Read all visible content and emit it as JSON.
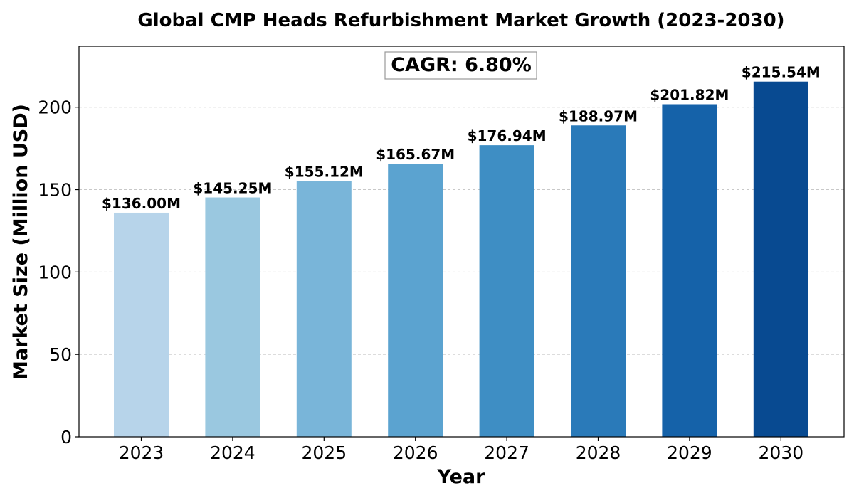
{
  "chart_data": {
    "type": "bar",
    "title": "Global CMP Heads Refurbishment Market Growth (2023-2030)",
    "xlabel": "Year",
    "ylabel": "Market Size (Million USD)",
    "categories": [
      "2023",
      "2024",
      "2025",
      "2026",
      "2027",
      "2028",
      "2029",
      "2030"
    ],
    "values": [
      136.0,
      145.25,
      155.12,
      165.67,
      176.94,
      188.97,
      201.82,
      215.54
    ],
    "value_labels": [
      "$136.00M",
      "$145.25M",
      "$155.12M",
      "$165.67M",
      "$176.94M",
      "$188.97M",
      "$201.82M",
      "$215.54M"
    ],
    "bar_colors": [
      "#b7d4ea",
      "#9ac8e0",
      "#79b5d9",
      "#5ba3d0",
      "#3e8ec4",
      "#2a7ab9",
      "#1562a9",
      "#084a91"
    ],
    "ylim": [
      0,
      237
    ],
    "yticks": [
      0,
      50,
      100,
      150,
      200
    ],
    "grid": true,
    "annotation": "CAGR: 6.80%"
  }
}
